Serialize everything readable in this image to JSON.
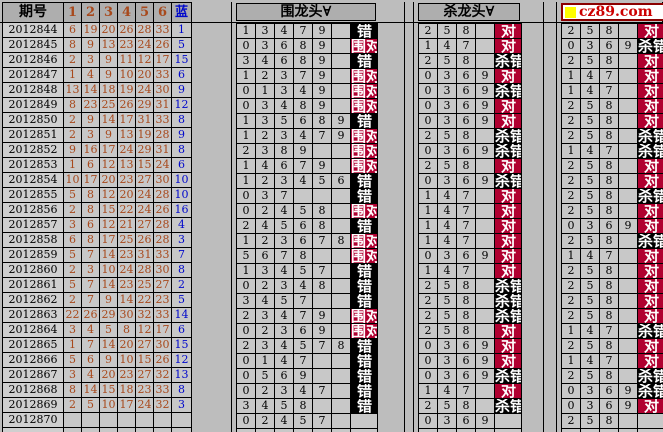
{
  "colors": {
    "red_ball": "#a8491c",
    "blue_ball": "#0008cc",
    "status_hit_bg": "#b00030",
    "status_miss_bg": "#000000",
    "logo_text_red": "#cc0000",
    "logo_square_yellow": "#ffff00"
  },
  "results": {
    "header_issue": "期号",
    "header_nums": [
      "1",
      "2",
      "3",
      "4",
      "5",
      "6"
    ],
    "header_blue": "蓝",
    "rows": [
      {
        "issue": "2012844",
        "nums": [
          "6",
          "19",
          "20",
          "26",
          "28",
          "33"
        ],
        "blue": "1"
      },
      {
        "issue": "2012845",
        "nums": [
          "8",
          "9",
          "13",
          "23",
          "24",
          "26"
        ],
        "blue": "5"
      },
      {
        "issue": "2012846",
        "nums": [
          "2",
          "3",
          "9",
          "11",
          "12",
          "17"
        ],
        "blue": "15"
      },
      {
        "issue": "2012847",
        "nums": [
          "1",
          "4",
          "9",
          "10",
          "20",
          "33"
        ],
        "blue": "6"
      },
      {
        "issue": "2012848",
        "nums": [
          "13",
          "14",
          "18",
          "19",
          "24",
          "30"
        ],
        "blue": "9"
      },
      {
        "issue": "2012849",
        "nums": [
          "8",
          "23",
          "25",
          "26",
          "29",
          "31"
        ],
        "blue": "12"
      },
      {
        "issue": "2012850",
        "nums": [
          "2",
          "9",
          "14",
          "17",
          "31",
          "33"
        ],
        "blue": "8"
      },
      {
        "issue": "2012851",
        "nums": [
          "2",
          "3",
          "9",
          "13",
          "19",
          "28"
        ],
        "blue": "9"
      },
      {
        "issue": "2012852",
        "nums": [
          "9",
          "16",
          "17",
          "24",
          "29",
          "31"
        ],
        "blue": "8"
      },
      {
        "issue": "2012853",
        "nums": [
          "1",
          "6",
          "12",
          "13",
          "15",
          "24"
        ],
        "blue": "6"
      },
      {
        "issue": "2012854",
        "nums": [
          "10",
          "17",
          "20",
          "23",
          "27",
          "30"
        ],
        "blue": "10"
      },
      {
        "issue": "2012855",
        "nums": [
          "5",
          "8",
          "12",
          "20",
          "24",
          "28"
        ],
        "blue": "10"
      },
      {
        "issue": "2012856",
        "nums": [
          "2",
          "8",
          "15",
          "22",
          "24",
          "26"
        ],
        "blue": "16"
      },
      {
        "issue": "2012857",
        "nums": [
          "3",
          "6",
          "12",
          "21",
          "27",
          "28"
        ],
        "blue": "4"
      },
      {
        "issue": "2012858",
        "nums": [
          "6",
          "8",
          "17",
          "25",
          "26",
          "28"
        ],
        "blue": "3"
      },
      {
        "issue": "2012859",
        "nums": [
          "5",
          "7",
          "14",
          "23",
          "31",
          "33"
        ],
        "blue": "7"
      },
      {
        "issue": "2012860",
        "nums": [
          "2",
          "3",
          "10",
          "24",
          "28",
          "30"
        ],
        "blue": "8"
      },
      {
        "issue": "2012861",
        "nums": [
          "5",
          "7",
          "14",
          "23",
          "25",
          "27"
        ],
        "blue": "2"
      },
      {
        "issue": "2012862",
        "nums": [
          "2",
          "7",
          "9",
          "14",
          "22",
          "23"
        ],
        "blue": "5"
      },
      {
        "issue": "2012863",
        "nums": [
          "22",
          "26",
          "29",
          "30",
          "32",
          "33"
        ],
        "blue": "14"
      },
      {
        "issue": "2012864",
        "nums": [
          "3",
          "4",
          "5",
          "8",
          "12",
          "17"
        ],
        "blue": "6"
      },
      {
        "issue": "2012865",
        "nums": [
          "1",
          "7",
          "14",
          "20",
          "27",
          "30"
        ],
        "blue": "15"
      },
      {
        "issue": "2012866",
        "nums": [
          "5",
          "6",
          "9",
          "10",
          "15",
          "26"
        ],
        "blue": "12"
      },
      {
        "issue": "2012867",
        "nums": [
          "3",
          "4",
          "20",
          "23",
          "27",
          "32"
        ],
        "blue": "13"
      },
      {
        "issue": "2012868",
        "nums": [
          "8",
          "14",
          "15",
          "18",
          "23",
          "33"
        ],
        "blue": "8"
      },
      {
        "issue": "2012869",
        "nums": [
          "2",
          "5",
          "10",
          "17",
          "24",
          "32"
        ],
        "blue": "3"
      },
      {
        "issue": "2012870",
        "nums": [],
        "blue": ""
      }
    ]
  },
  "wei": {
    "title": "围龙头∀",
    "rows": [
      {
        "nums": [
          "1",
          "3",
          "4",
          "7",
          "9"
        ],
        "status": "错"
      },
      {
        "nums": [
          "0",
          "3",
          "6",
          "8",
          "9"
        ],
        "status": "围对"
      },
      {
        "nums": [
          "3",
          "4",
          "6",
          "8",
          "9"
        ],
        "status": "错"
      },
      {
        "nums": [
          "1",
          "2",
          "3",
          "7",
          "9"
        ],
        "status": "围对"
      },
      {
        "nums": [
          "0",
          "1",
          "3",
          "4",
          "9"
        ],
        "status": "围对"
      },
      {
        "nums": [
          "0",
          "3",
          "4",
          "8",
          "9"
        ],
        "status": "围对"
      },
      {
        "nums": [
          "1",
          "3",
          "5",
          "6",
          "8",
          "9"
        ],
        "status": "错"
      },
      {
        "nums": [
          "1",
          "2",
          "3",
          "4",
          "7",
          "9"
        ],
        "status": "围对"
      },
      {
        "nums": [
          "2",
          "3",
          "8",
          "9"
        ],
        "status": "围对"
      },
      {
        "nums": [
          "1",
          "4",
          "6",
          "7",
          "9"
        ],
        "status": "围对"
      },
      {
        "nums": [
          "1",
          "2",
          "3",
          "4",
          "5",
          "6"
        ],
        "status": "错"
      },
      {
        "nums": [
          "0",
          "3",
          "7"
        ],
        "status": "错"
      },
      {
        "nums": [
          "0",
          "2",
          "4",
          "5",
          "8"
        ],
        "status": "围对"
      },
      {
        "nums": [
          "2",
          "4",
          "5",
          "6",
          "8"
        ],
        "status": "错"
      },
      {
        "nums": [
          "1",
          "2",
          "3",
          "6",
          "7",
          "8"
        ],
        "status": "围对"
      },
      {
        "nums": [
          "5",
          "6",
          "7",
          "8"
        ],
        "status": "围对"
      },
      {
        "nums": [
          "1",
          "3",
          "4",
          "5",
          "7"
        ],
        "status": "错"
      },
      {
        "nums": [
          "0",
          "2",
          "3",
          "4",
          "8"
        ],
        "status": "错"
      },
      {
        "nums": [
          "3",
          "4",
          "5",
          "7"
        ],
        "status": "错"
      },
      {
        "nums": [
          "2",
          "3",
          "4",
          "7",
          "9"
        ],
        "status": "围对"
      },
      {
        "nums": [
          "0",
          "2",
          "3",
          "6",
          "9"
        ],
        "status": "围对"
      },
      {
        "nums": [
          "2",
          "3",
          "4",
          "5",
          "7",
          "8"
        ],
        "status": "错"
      },
      {
        "nums": [
          "0",
          "1",
          "4",
          "7"
        ],
        "status": "错"
      },
      {
        "nums": [
          "0",
          "5",
          "6",
          "9"
        ],
        "status": "错"
      },
      {
        "nums": [
          "0",
          "2",
          "3",
          "4",
          "7"
        ],
        "status": "错"
      },
      {
        "nums": [
          "3",
          "4",
          "5",
          "8"
        ],
        "status": "错"
      },
      {
        "nums": [
          "0",
          "2",
          "4",
          "5",
          "7"
        ],
        "status": ""
      }
    ]
  },
  "sha": {
    "title": "杀龙头∀",
    "rows": [
      {
        "nums": [
          "2",
          "5",
          "8"
        ],
        "status": "对"
      },
      {
        "nums": [
          "1",
          "4",
          "7"
        ],
        "status": "对"
      },
      {
        "nums": [
          "2",
          "5",
          "8"
        ],
        "status": "杀错"
      },
      {
        "nums": [
          "0",
          "3",
          "6",
          "9"
        ],
        "status": "对"
      },
      {
        "nums": [
          "0",
          "3",
          "6",
          "9"
        ],
        "status": "杀错"
      },
      {
        "nums": [
          "0",
          "3",
          "6",
          "9"
        ],
        "status": "对"
      },
      {
        "nums": [
          "0",
          "3",
          "6",
          "9"
        ],
        "status": "对"
      },
      {
        "nums": [
          "2",
          "5",
          "8"
        ],
        "status": "杀错"
      },
      {
        "nums": [
          "0",
          "3",
          "6",
          "9"
        ],
        "status": "杀错"
      },
      {
        "nums": [
          "2",
          "5",
          "8"
        ],
        "status": "对"
      },
      {
        "nums": [
          "0",
          "3",
          "6",
          "9"
        ],
        "status": "杀错"
      },
      {
        "nums": [
          "1",
          "4",
          "7"
        ],
        "status": "对"
      },
      {
        "nums": [
          "1",
          "4",
          "7"
        ],
        "status": "对"
      },
      {
        "nums": [
          "1",
          "4",
          "7"
        ],
        "status": "对"
      },
      {
        "nums": [
          "1",
          "4",
          "7"
        ],
        "status": "对"
      },
      {
        "nums": [
          "0",
          "3",
          "6",
          "9"
        ],
        "status": "对"
      },
      {
        "nums": [
          "1",
          "4",
          "7"
        ],
        "status": "对"
      },
      {
        "nums": [
          "2",
          "5",
          "8"
        ],
        "status": "杀错"
      },
      {
        "nums": [
          "2",
          "5",
          "8"
        ],
        "status": "杀错"
      },
      {
        "nums": [
          "2",
          "5",
          "8"
        ],
        "status": "杀错"
      },
      {
        "nums": [
          "2",
          "5",
          "8"
        ],
        "status": "对"
      },
      {
        "nums": [
          "0",
          "3",
          "6",
          "9"
        ],
        "status": "对"
      },
      {
        "nums": [
          "0",
          "3",
          "6",
          "9"
        ],
        "status": "对"
      },
      {
        "nums": [
          "0",
          "3",
          "6",
          "9"
        ],
        "status": "杀错"
      },
      {
        "nums": [
          "1",
          "4",
          "7"
        ],
        "status": "对"
      },
      {
        "nums": [
          "2",
          "5",
          "8"
        ],
        "status": "杀错"
      },
      {
        "nums": [
          "0",
          "3",
          "6",
          "9"
        ],
        "status": ""
      }
    ]
  },
  "cz": {
    "logo": "cz89.com",
    "rows": [
      {
        "nums": [
          "2",
          "5",
          "8"
        ],
        "status": "对"
      },
      {
        "nums": [
          "0",
          "3",
          "6",
          "9"
        ],
        "status": "杀错"
      },
      {
        "nums": [
          "2",
          "5",
          "8"
        ],
        "status": "对"
      },
      {
        "nums": [
          "1",
          "4",
          "7"
        ],
        "status": "对"
      },
      {
        "nums": [
          "1",
          "4",
          "7"
        ],
        "status": "对"
      },
      {
        "nums": [
          "2",
          "5",
          "8"
        ],
        "status": "对"
      },
      {
        "nums": [
          "2",
          "5",
          "8"
        ],
        "status": "对"
      },
      {
        "nums": [
          "2",
          "5",
          "8"
        ],
        "status": "杀错"
      },
      {
        "nums": [
          "1",
          "4",
          "7"
        ],
        "status": "杀错"
      },
      {
        "nums": [
          "2",
          "5",
          "8"
        ],
        "status": "对"
      },
      {
        "nums": [
          "2",
          "5",
          "8"
        ],
        "status": "对"
      },
      {
        "nums": [
          "2",
          "5",
          "8"
        ],
        "status": "杀错"
      },
      {
        "nums": [
          "2",
          "5",
          "8"
        ],
        "status": "对"
      },
      {
        "nums": [
          "0",
          "3",
          "6",
          "9"
        ],
        "status": "对"
      },
      {
        "nums": [
          "2",
          "5",
          "8"
        ],
        "status": "杀错"
      },
      {
        "nums": [
          "1",
          "4",
          "7"
        ],
        "status": "对"
      },
      {
        "nums": [
          "2",
          "5",
          "8"
        ],
        "status": "对"
      },
      {
        "nums": [
          "2",
          "5",
          "8"
        ],
        "status": "对"
      },
      {
        "nums": [
          "2",
          "5",
          "8"
        ],
        "status": "对"
      },
      {
        "nums": [
          "2",
          "5",
          "8"
        ],
        "status": "对"
      },
      {
        "nums": [
          "1",
          "4",
          "7"
        ],
        "status": "杀错"
      },
      {
        "nums": [
          "2",
          "5",
          "8"
        ],
        "status": "对"
      },
      {
        "nums": [
          "1",
          "4",
          "7"
        ],
        "status": "对"
      },
      {
        "nums": [
          "2",
          "5",
          "8"
        ],
        "status": "杀错"
      },
      {
        "nums": [
          "0",
          "3",
          "6",
          "9"
        ],
        "status": "杀错"
      },
      {
        "nums": [
          "0",
          "3",
          "6",
          "9"
        ],
        "status": "对"
      },
      {
        "nums": [
          "2",
          "5",
          "8"
        ],
        "status": ""
      }
    ]
  }
}
